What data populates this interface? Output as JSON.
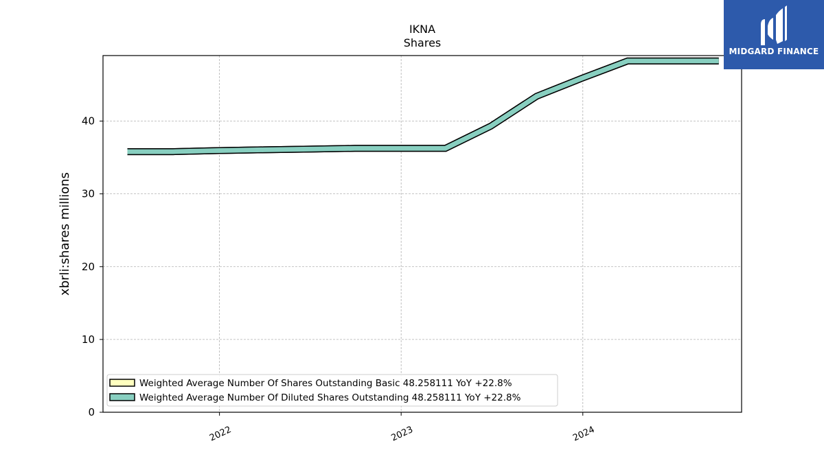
{
  "brand": {
    "name": "MIDGARD FINANCE",
    "bg_color": "#2d5aab",
    "icon": "midgard-logo-icon"
  },
  "chart_data": {
    "type": "line",
    "title": "IKNA",
    "subtitle": "Shares",
    "xlabel": "",
    "ylabel": "xbrli:shares millions",
    "x_ticks": [
      "2022",
      "2023",
      "2024"
    ],
    "y_ticks": [
      "0",
      "10",
      "20",
      "30",
      "40"
    ],
    "ylim": [
      0,
      49
    ],
    "xlim": [
      "2021-05-12",
      "2024-11-15"
    ],
    "grid": true,
    "legend_position": "lower-left",
    "x": [
      "2021-06-30",
      "2021-09-30",
      "2021-12-31",
      "2022-03-31",
      "2022-06-30",
      "2022-09-30",
      "2022-12-31",
      "2023-03-31",
      "2023-06-30",
      "2023-09-30",
      "2023-12-31",
      "2024-03-31",
      "2024-06-30",
      "2024-09-30"
    ],
    "series": [
      {
        "name": "Weighted Average Number Of Shares Outstanding Basic  48.258111 YoY +22.8%",
        "color": "#ffffbf",
        "values": [
          35.8,
          35.8,
          35.95,
          36.05,
          36.15,
          36.25,
          36.25,
          36.25,
          39.3,
          43.4,
          45.9,
          48.26,
          48.26,
          48.26
        ]
      },
      {
        "name": "Weighted Average Number Of Diluted Shares Outstanding  48.258111 YoY +22.8%",
        "color": "#88cfc0",
        "values": [
          35.8,
          35.8,
          35.95,
          36.05,
          36.15,
          36.25,
          36.25,
          36.25,
          39.3,
          43.4,
          45.9,
          48.26,
          48.26,
          48.26
        ]
      }
    ]
  }
}
